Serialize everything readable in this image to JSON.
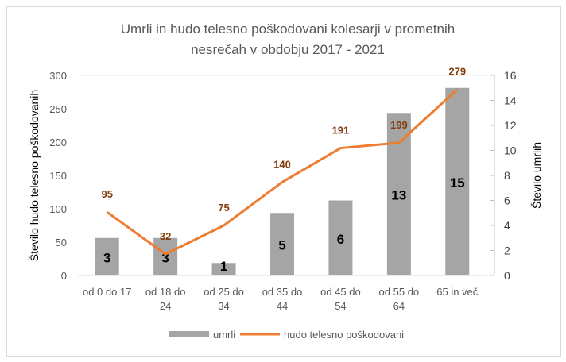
{
  "chart_data": {
    "type": "bar+line",
    "title_lines": [
      "Umrli in hudo telesno poškodovani kolesarji v prometnih",
      "nesrečah v obdobju 2017 - 2021"
    ],
    "categories": [
      [
        "od 0 do 17"
      ],
      [
        "od 18 do",
        "24"
      ],
      [
        "od 25 do",
        "34"
      ],
      [
        "od 35 do",
        "44"
      ],
      [
        "od 45 do",
        "54"
      ],
      [
        "od 55 do",
        "64"
      ],
      [
        "65 in več"
      ]
    ],
    "ylabel_left": "Število hudo telesno poškodovanih",
    "ylabel_right": "Število umrlih",
    "ylim_left": [
      0,
      300
    ],
    "yticks_left": [
      0,
      50,
      100,
      150,
      200,
      250,
      300
    ],
    "ylim_right": [
      0,
      16
    ],
    "yticks_right": [
      0,
      2,
      4,
      6,
      8,
      10,
      12,
      14,
      16
    ],
    "series": [
      {
        "name": "umrli",
        "type": "bar",
        "axis": "right",
        "color": "#a5a5a5",
        "values": [
          3,
          3,
          1,
          5,
          6,
          13,
          15
        ]
      },
      {
        "name": "hudo telesno poškodovani",
        "type": "line",
        "axis": "left",
        "color": "#ed7d31",
        "label_color": "#843c0c",
        "values": [
          95,
          32,
          75,
          140,
          191,
          199,
          279
        ]
      }
    ],
    "legend": "bottom"
  }
}
